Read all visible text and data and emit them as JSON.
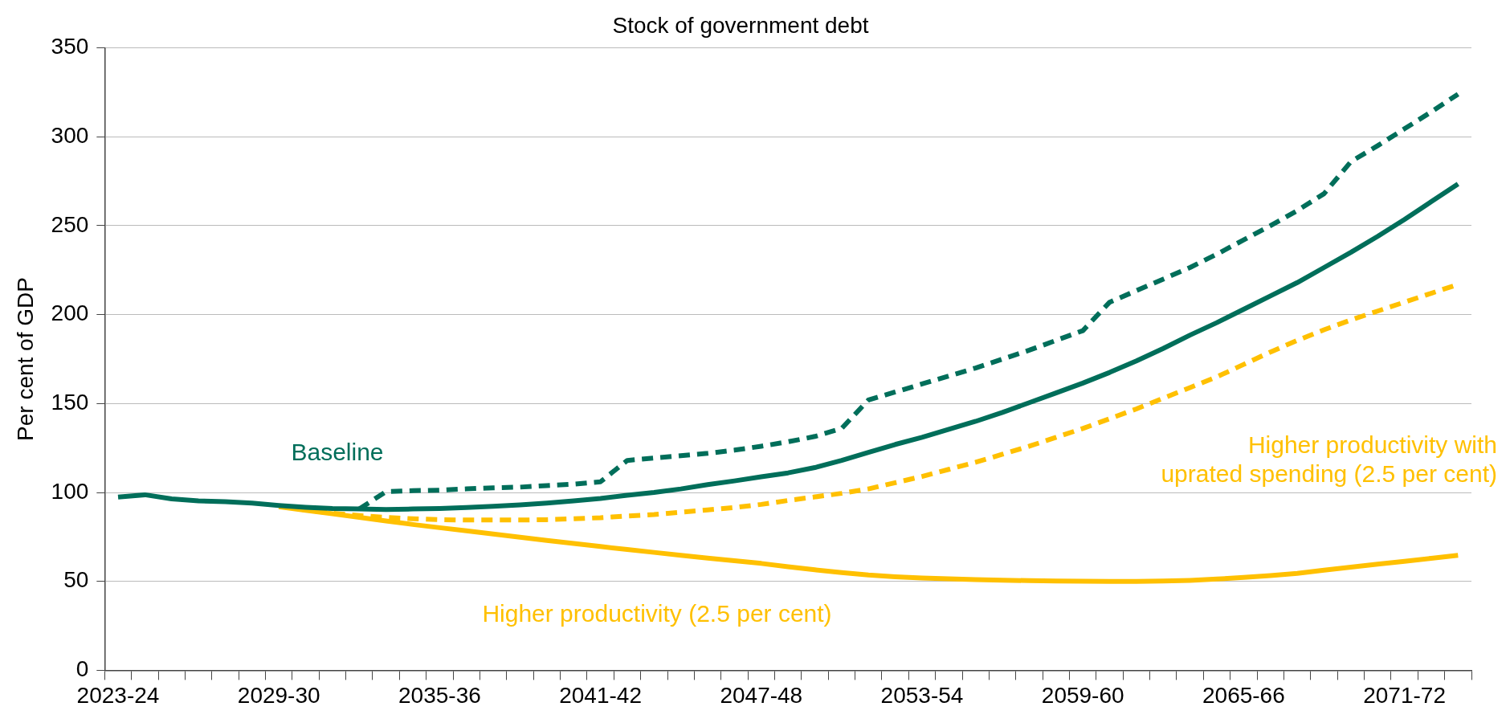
{
  "chart_data": {
    "type": "line",
    "title": "Stock of government debt",
    "ylabel": "Per cent of GDP",
    "categories": [
      "2023-24",
      null,
      null,
      null,
      null,
      null,
      "2029-30",
      null,
      null,
      null,
      null,
      null,
      "2035-36",
      null,
      null,
      null,
      null,
      null,
      "2041-42",
      null,
      null,
      null,
      null,
      null,
      "2047-48",
      null,
      null,
      null,
      null,
      null,
      "2053-54",
      null,
      null,
      null,
      null,
      null,
      "2059-60",
      null,
      null,
      null,
      null,
      null,
      "2065-66",
      null,
      null,
      null,
      null,
      null,
      "2071-72",
      null,
      null
    ],
    "series": [
      {
        "name": "Higher productivity (2.5 per cent)",
        "color": "#ffc000",
        "line_style": "solid",
        "values": [
          null,
          null,
          null,
          null,
          null,
          null,
          92,
          90,
          88,
          86,
          84,
          82,
          80.2,
          78.4,
          76.6,
          74.8,
          73,
          71.3,
          69.6,
          67.9,
          66.3,
          64.7,
          63.1,
          61.6,
          60.1,
          58.2,
          56.5,
          55,
          53.6,
          52.6,
          51.9,
          51.4,
          51,
          50.7,
          50.4,
          50.2,
          50.1,
          50,
          50,
          50.2,
          50.6,
          51.3,
          52.2,
          53.3,
          54.5,
          56.3,
          58,
          59.7,
          61.3,
          63,
          64.7
        ]
      },
      {
        "name": "Higher productivity with uprated spending (2.5 per cent)",
        "color": "#ffc000",
        "line_style": "dashed",
        "values": [
          null,
          null,
          null,
          null,
          null,
          null,
          92.5,
          90.2,
          88.3,
          87,
          86,
          85.2,
          84.7,
          84.5,
          84.5,
          84.5,
          84.7,
          85.2,
          85.8,
          86.8,
          87.6,
          88.9,
          90.2,
          91.5,
          93.3,
          95.5,
          97.5,
          99.5,
          102,
          105.5,
          109,
          113,
          117,
          121.5,
          126,
          131,
          136,
          141.5,
          147,
          153,
          159,
          165,
          172,
          179,
          185.5,
          191.5,
          197,
          202,
          207,
          212,
          217
        ]
      },
      {
        "color": "#006e5a",
        "line_style": "dashed",
        "values": [
          null,
          null,
          null,
          null,
          null,
          null,
          null,
          null,
          null,
          90.7,
          100.5,
          101,
          101.3,
          102,
          102.6,
          103,
          103.9,
          104.7,
          106,
          118,
          119.4,
          120.7,
          122,
          123.8,
          126,
          128.5,
          131.5,
          136,
          152,
          156.5,
          161,
          165.5,
          170,
          175,
          180,
          185.5,
          191,
          207,
          213.5,
          220,
          226.5,
          234,
          242,
          250,
          258.5,
          268,
          286,
          295,
          304.5,
          314,
          324
        ]
      },
      {
        "name": "Baseline",
        "color": "#006e5a",
        "line_style": "solid",
        "values": [
          97.4,
          98.7,
          96.4,
          95.3,
          94.8,
          94,
          92.7,
          91.7,
          91,
          90.7,
          90.4,
          90.7,
          91,
          91.5,
          92.2,
          93,
          94,
          95.3,
          96.6,
          98.4,
          100,
          102,
          104.4,
          106.5,
          108.8,
          111,
          114,
          118,
          122.5,
          127,
          131,
          135.5,
          140,
          145,
          150.5,
          156,
          161.5,
          167.5,
          174,
          181,
          188.5,
          195.5,
          203,
          210.5,
          218,
          226.5,
          235,
          244,
          253.5,
          263.5,
          273.5
        ]
      }
    ],
    "ylim": [
      0,
      350
    ],
    "yticks": [
      0,
      50,
      100,
      150,
      200,
      250,
      300,
      350
    ],
    "grid": "y",
    "legend": false,
    "marker": "none"
  }
}
